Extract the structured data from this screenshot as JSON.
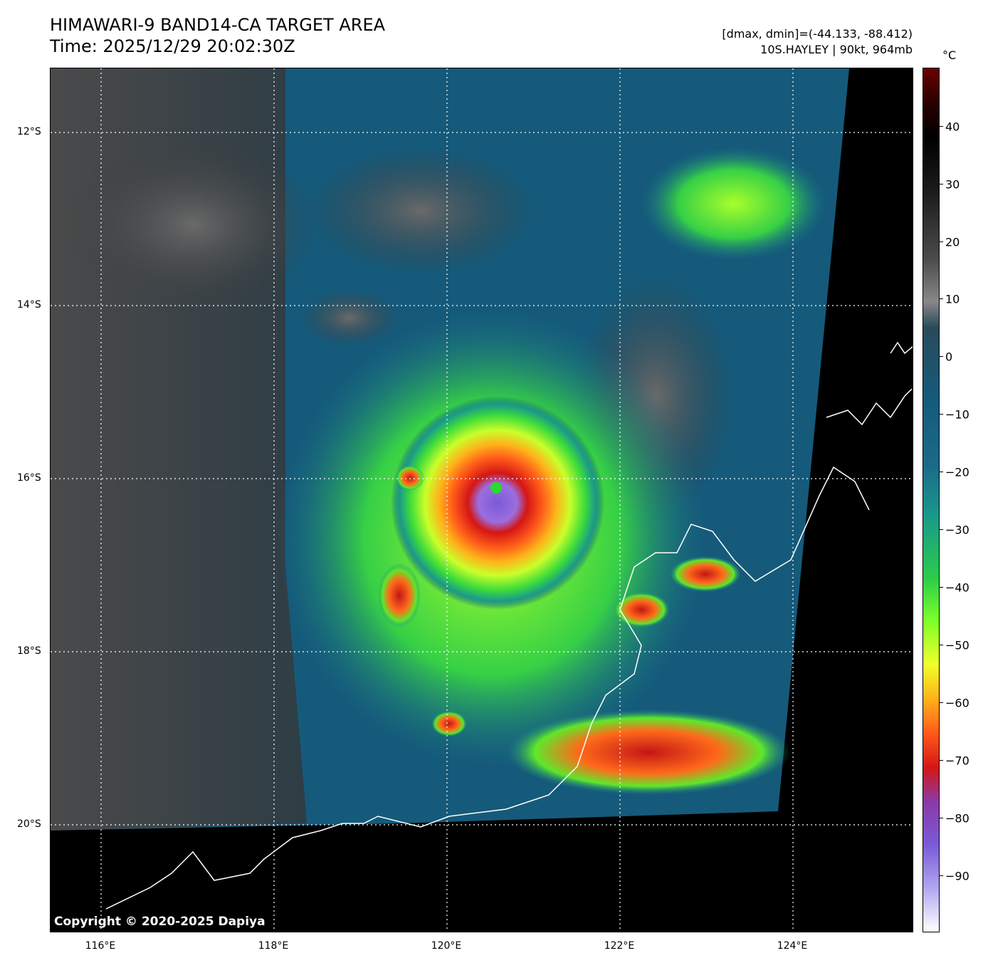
{
  "header": {
    "title_line1": "HIMAWARI-9 BAND14-CA TARGET AREA",
    "title_line2": "Time: 2025/12/29 20:02:30Z",
    "info_line1": "[dmax, dmin]=(-44.133, -88.412)",
    "info_line2": "10S.HAYLEY | 90kt, 964mb"
  },
  "map": {
    "lat_labels": [
      "12°S",
      "14°S",
      "16°S",
      "18°S",
      "20°S"
    ],
    "lon_labels": [
      "116°E",
      "118°E",
      "120°E",
      "122°E",
      "124°E"
    ],
    "copyright": "Copyright © 2020-2025 Dapiya"
  },
  "colorbar": {
    "unit": "°C",
    "ticks": [
      "40",
      "30",
      "20",
      "10",
      "0",
      "−10",
      "−20",
      "−30",
      "−40",
      "−50",
      "−60",
      "−70",
      "−80",
      "−90"
    ]
  },
  "colors": {
    "background": "#000000",
    "cold_cloud": "#ff3b1a",
    "coldest": "#7a5ad8",
    "mid_cloud": "#7dff2a",
    "warm_ocean": "#155a7a",
    "land_gray": "#555555"
  }
}
